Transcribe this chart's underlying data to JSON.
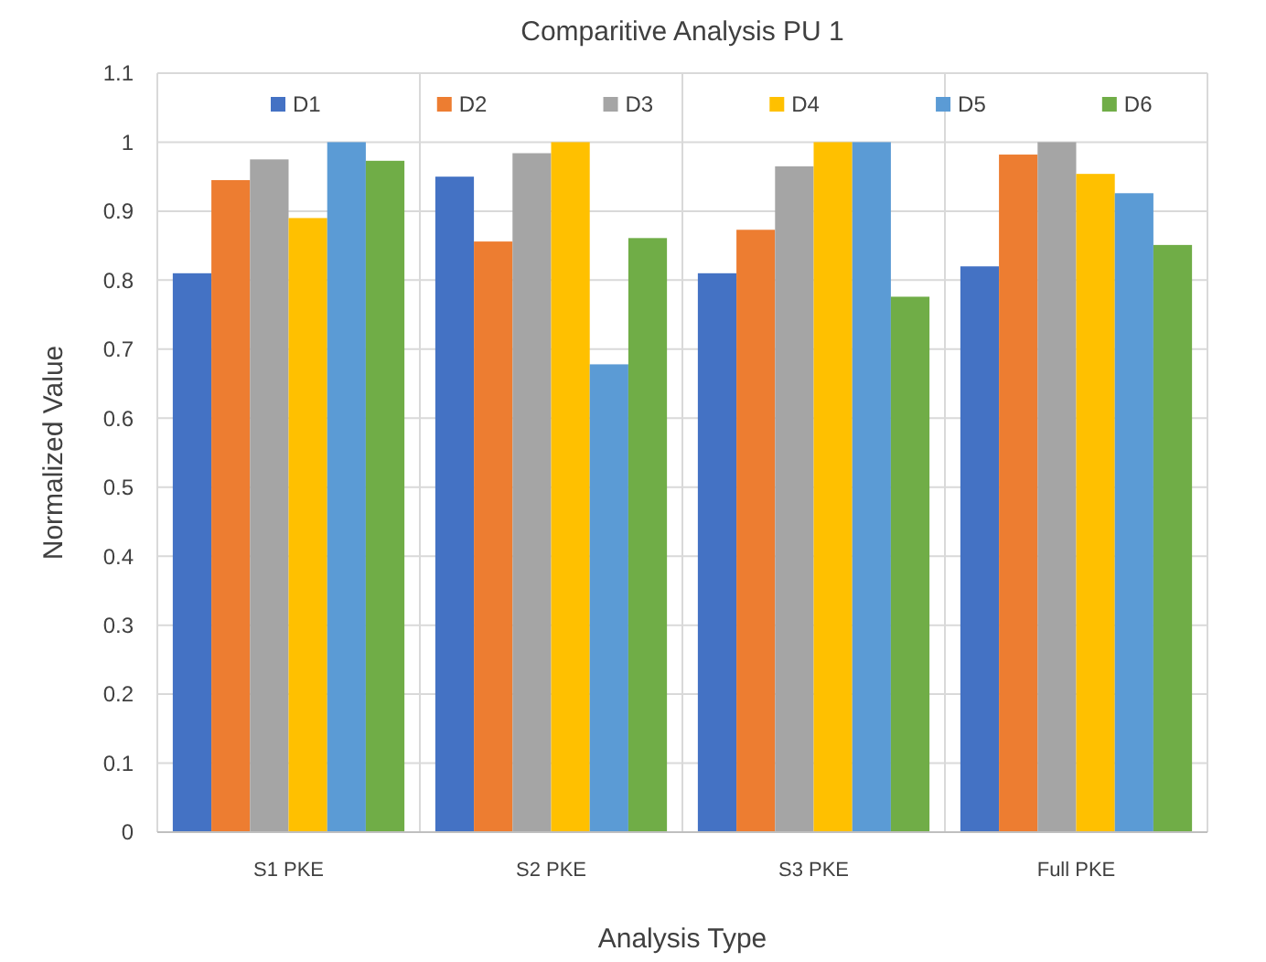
{
  "chart_data": {
    "type": "bar",
    "title": "Comparitive Analysis PU 1",
    "xlabel": "Analysis Type",
    "ylabel": "Normalized Value",
    "categories": [
      "S1 PKE",
      "S2 PKE",
      "S3 PKE",
      "Full PKE"
    ],
    "series": [
      {
        "name": "D1",
        "color": "#4472c4",
        "values": [
          0.81,
          0.95,
          0.81,
          0.82
        ]
      },
      {
        "name": "D2",
        "color": "#ed7d31",
        "values": [
          0.945,
          0.856,
          0.873,
          0.982
        ]
      },
      {
        "name": "D3",
        "color": "#a5a5a5",
        "values": [
          0.975,
          0.984,
          0.965,
          1
        ]
      },
      {
        "name": "D4",
        "color": "#ffc000",
        "values": [
          0.89,
          1,
          1,
          0.954
        ]
      },
      {
        "name": "D5",
        "color": "#5b9bd5",
        "values": [
          1,
          0.678,
          1,
          0.926
        ]
      },
      {
        "name": "D6",
        "color": "#70ad47",
        "values": [
          0.973,
          0.861,
          0.776,
          0.851
        ]
      }
    ],
    "ylim": [
      0,
      1.1
    ],
    "yticks": [
      0,
      0.1,
      0.2,
      0.3,
      0.4,
      0.5,
      0.6,
      0.7,
      0.8,
      0.9,
      1,
      1.1
    ],
    "grid": true,
    "legend": "top"
  }
}
